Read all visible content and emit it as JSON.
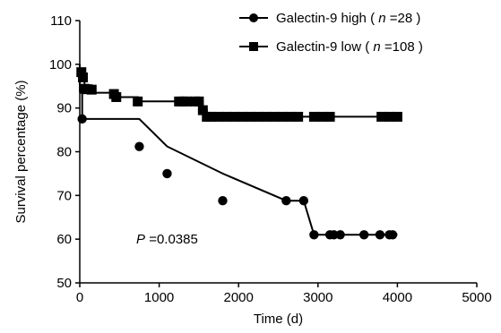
{
  "chart_data": {
    "type": "line",
    "style": "kaplan-meier step curves with censor markers",
    "xlabel": "Time (d)",
    "ylabel": "Survival percentage (%)",
    "xlim": [
      0,
      5000
    ],
    "ylim": [
      50,
      110
    ],
    "xticks": [
      "0",
      "1000",
      "2000",
      "3000",
      "4000",
      "5000"
    ],
    "yticks": [
      "50",
      "60",
      "70",
      "80",
      "90",
      "100",
      "110"
    ],
    "xtick_values": [
      0,
      1000,
      2000,
      3000,
      4000,
      5000
    ],
    "ytick_values": [
      50,
      60,
      70,
      80,
      90,
      100,
      110
    ],
    "grid": false,
    "legend_position": "top-right",
    "annotation": {
      "italic": "P",
      "text": "=0.0385"
    },
    "series": [
      {
        "legend_name": "Galectin-9 high",
        "legend_n_label": "n",
        "legend_n_value": "=28",
        "marker": "circle",
        "color": "#000000",
        "points": [
          [
            0,
            100
          ],
          [
            0,
            93.8
          ],
          [
            30,
            93.8
          ],
          [
            30,
            87.5
          ],
          [
            750,
            87.5
          ],
          [
            1100,
            81.2
          ],
          [
            1800,
            75
          ],
          [
            2600,
            68.8
          ],
          [
            2820,
            68.8
          ],
          [
            2950,
            61
          ],
          [
            4000,
            61
          ]
        ],
        "markers": [
          [
            30,
            87.5
          ],
          [
            750,
            81.2
          ],
          [
            1100,
            75
          ],
          [
            1800,
            68.8
          ],
          [
            2600,
            68.8
          ],
          [
            2820,
            68.8
          ],
          [
            2950,
            61
          ],
          [
            3150,
            61
          ],
          [
            3200,
            61
          ],
          [
            3280,
            61
          ],
          [
            3580,
            61
          ],
          [
            3780,
            61
          ],
          [
            3900,
            61
          ],
          [
            3940,
            61
          ]
        ]
      },
      {
        "legend_name": "Galectin-9 low",
        "legend_n_label": "n",
        "legend_n_value": "=108",
        "marker": "square",
        "color": "#000000",
        "points": [
          [
            0,
            100
          ],
          [
            0,
            98.2
          ],
          [
            20,
            98.2
          ],
          [
            20,
            96.3
          ],
          [
            60,
            96.3
          ],
          [
            60,
            94.4
          ],
          [
            150,
            94.4
          ],
          [
            150,
            93.5
          ],
          [
            430,
            93.5
          ],
          [
            430,
            92.5
          ],
          [
            730,
            92.5
          ],
          [
            730,
            91.5
          ],
          [
            1550,
            91.5
          ],
          [
            1550,
            89.5
          ],
          [
            1600,
            89.5
          ],
          [
            1600,
            88
          ],
          [
            4050,
            88
          ]
        ],
        "markers": [
          [
            20,
            98.2
          ],
          [
            40,
            97
          ],
          [
            60,
            94.4
          ],
          [
            100,
            94.3
          ],
          [
            150,
            94.2
          ],
          [
            430,
            93.2
          ],
          [
            460,
            92.5
          ],
          [
            730,
            91.5
          ],
          [
            1250,
            91.5
          ],
          [
            1300,
            91.5
          ],
          [
            1350,
            91.5
          ],
          [
            1450,
            91.5
          ],
          [
            1500,
            91.5
          ],
          [
            1550,
            89.5
          ],
          [
            1600,
            88
          ],
          [
            1650,
            88
          ],
          [
            1750,
            88
          ],
          [
            1850,
            88
          ],
          [
            1950,
            88
          ],
          [
            2050,
            88
          ],
          [
            2150,
            88
          ],
          [
            2250,
            88
          ],
          [
            2350,
            88
          ],
          [
            2450,
            88
          ],
          [
            2550,
            88
          ],
          [
            2650,
            88
          ],
          [
            2750,
            88
          ],
          [
            2950,
            88
          ],
          [
            3050,
            88
          ],
          [
            3150,
            88
          ],
          [
            3800,
            88
          ],
          [
            3900,
            88
          ],
          [
            4000,
            88
          ]
        ]
      }
    ]
  }
}
